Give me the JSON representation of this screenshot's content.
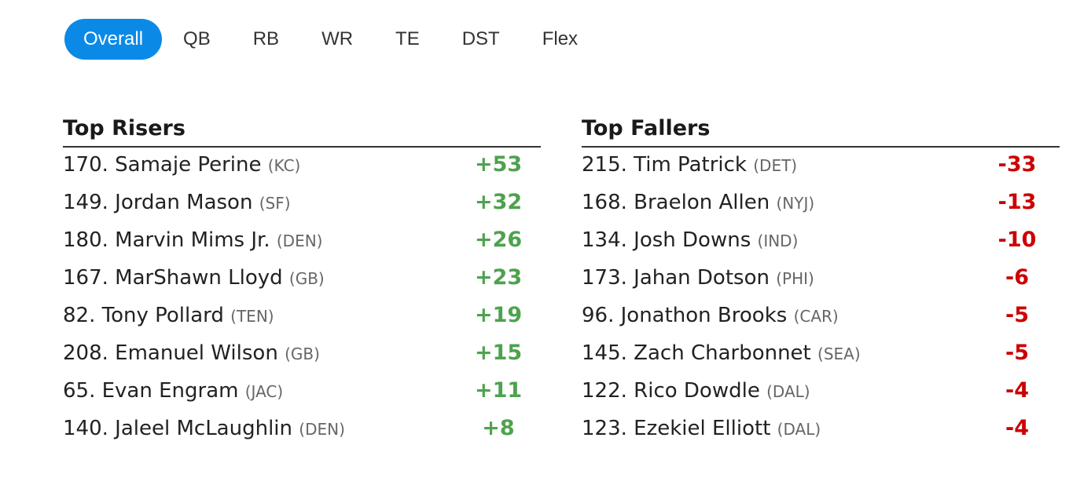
{
  "tabs": [
    {
      "label": "Overall",
      "active": true
    },
    {
      "label": "QB",
      "active": false
    },
    {
      "label": "RB",
      "active": false
    },
    {
      "label": "WR",
      "active": false
    },
    {
      "label": "TE",
      "active": false
    },
    {
      "label": "DST",
      "active": false
    },
    {
      "label": "Flex",
      "active": false
    }
  ],
  "colors": {
    "active_tab": "#0a8ae6",
    "riser": "#4ea24e",
    "faller": "#cc0000"
  },
  "risers": {
    "title": "Top Risers",
    "rows": [
      {
        "player": "170. Samaje Perine",
        "team": "(KC)",
        "change": "+53"
      },
      {
        "player": "149. Jordan Mason",
        "team": "(SF)",
        "change": "+32"
      },
      {
        "player": "180. Marvin Mims Jr.",
        "team": "(DEN)",
        "change": "+26"
      },
      {
        "player": "167. MarShawn Lloyd",
        "team": "(GB)",
        "change": "+23"
      },
      {
        "player": "82. Tony Pollard",
        "team": "(TEN)",
        "change": "+19"
      },
      {
        "player": "208. Emanuel Wilson",
        "team": "(GB)",
        "change": "+15"
      },
      {
        "player": "65. Evan Engram",
        "team": "(JAC)",
        "change": "+11"
      },
      {
        "player": "140. Jaleel McLaughlin",
        "team": "(DEN)",
        "change": "+8"
      }
    ]
  },
  "fallers": {
    "title": "Top Fallers",
    "rows": [
      {
        "player": "215. Tim Patrick",
        "team": "(DET)",
        "change": "-33"
      },
      {
        "player": "168. Braelon Allen",
        "team": "(NYJ)",
        "change": "-13"
      },
      {
        "player": "134. Josh Downs",
        "team": "(IND)",
        "change": "-10"
      },
      {
        "player": "173. Jahan Dotson",
        "team": "(PHI)",
        "change": "-6"
      },
      {
        "player": "96. Jonathon Brooks",
        "team": "(CAR)",
        "change": "-5"
      },
      {
        "player": "145. Zach Charbonnet",
        "team": "(SEA)",
        "change": "-5"
      },
      {
        "player": "122. Rico Dowdle",
        "team": "(DAL)",
        "change": "-4"
      },
      {
        "player": "123. Ezekiel Elliott",
        "team": "(DAL)",
        "change": "-4"
      }
    ]
  }
}
